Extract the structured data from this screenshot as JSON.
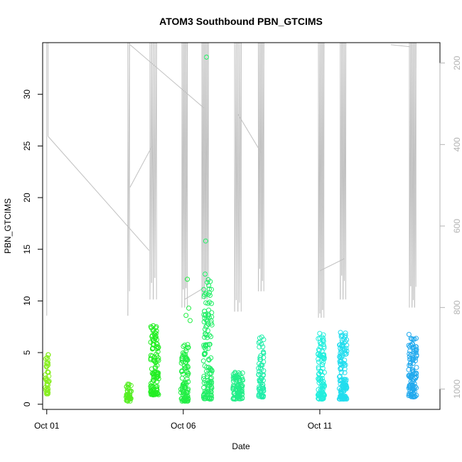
{
  "chart_data": {
    "type": "scatter",
    "title": "ATOM3 Southbound PBN_GTCIMS",
    "xlabel": "Date",
    "ylabel": "PBN_GTCIMS",
    "xlim": [
      -0.15,
      14.4
    ],
    "ylim": [
      -0.5,
      35
    ],
    "x_ticks": [
      0,
      5,
      10
    ],
    "x_tick_labels": [
      "Oct 01",
      "Oct 06",
      "Oct 11"
    ],
    "y_ticks": [
      0,
      5,
      10,
      15,
      20,
      25,
      30
    ],
    "y_tick_labels": [
      "0",
      "5",
      "10",
      "15",
      "20",
      "25",
      "30"
    ],
    "y2_ticks": [
      200,
      400,
      600,
      800,
      1000
    ],
    "y2_tick_labels": [
      "200",
      "400",
      "600",
      "800",
      "1000"
    ],
    "y2_lim": [
      1050,
      150
    ],
    "y2_label": "",
    "grid": false,
    "legend": "none",
    "series": [
      {
        "kind": "points",
        "clusters": [
          {
            "day": 0.02,
            "width": 0.07,
            "y_min": 1.0,
            "y_max": 4.8,
            "n": 45,
            "color": "#88ee22"
          },
          {
            "day": 3.0,
            "width": 0.1,
            "y_min": 0.3,
            "y_max": 2.0,
            "n": 40,
            "color": "#55ee22"
          },
          {
            "day": 3.95,
            "width": 0.15,
            "y_min": 0.9,
            "y_max": 7.6,
            "n": 110,
            "color": "#22ee22"
          },
          {
            "day": 5.05,
            "width": 0.14,
            "y_min": 0.3,
            "y_max": 5.8,
            "n": 95,
            "color": "#22ee44"
          },
          {
            "day": 5.9,
            "width": 0.16,
            "y_min": 0.5,
            "y_max": 12.7,
            "n": 130,
            "color": "#22ee66"
          },
          {
            "day": 7.0,
            "width": 0.18,
            "y_min": 0.5,
            "y_max": 3.2,
            "n": 90,
            "color": "#22ee88"
          },
          {
            "day": 7.85,
            "width": 0.1,
            "y_min": 0.7,
            "y_max": 6.8,
            "n": 70,
            "color": "#22eeaa"
          },
          {
            "day": 10.05,
            "width": 0.12,
            "y_min": 0.5,
            "y_max": 6.9,
            "n": 110,
            "color": "#22eedd"
          },
          {
            "day": 10.85,
            "width": 0.14,
            "y_min": 0.5,
            "y_max": 7.0,
            "n": 130,
            "color": "#22ddee"
          },
          {
            "day": 13.4,
            "width": 0.15,
            "y_min": 0.7,
            "y_max": 6.9,
            "n": 110,
            "color": "#22aaee"
          }
        ],
        "outliers": [
          {
            "x": 5.15,
            "y": 12.1,
            "color": "#22ee44"
          },
          {
            "x": 5.2,
            "y": 9.3,
            "color": "#22ee44"
          },
          {
            "x": 5.1,
            "y": 8.6,
            "color": "#22ee44"
          },
          {
            "x": 5.25,
            "y": 8.1,
            "color": "#22ee44"
          },
          {
            "x": 5.18,
            "y": 5.5,
            "color": "#22ee44"
          },
          {
            "x": 5.85,
            "y": 33.6,
            "color": "#22ee66"
          },
          {
            "x": 5.82,
            "y": 15.8,
            "color": "#22ee66"
          },
          {
            "x": 5.8,
            "y": 12.6,
            "color": "#22ee66"
          },
          {
            "x": 5.88,
            "y": 11.8,
            "color": "#22ee66"
          },
          {
            "x": 5.78,
            "y": 10.6,
            "color": "#22ee66"
          },
          {
            "x": 5.8,
            "y": 8.6,
            "color": "#22ee66"
          },
          {
            "x": 5.83,
            "y": 7.5,
            "color": "#22ee66"
          },
          {
            "x": 3.9,
            "y": 7.6,
            "color": "#22ee22"
          },
          {
            "x": 3.88,
            "y": 6.3,
            "color": "#22ee22"
          },
          {
            "x": 0.05,
            "y": 4.8,
            "color": "#88ee22"
          }
        ]
      },
      {
        "kind": "line",
        "axis": "right",
        "color": "#c0c0c0",
        "segments": [
          {
            "day": 0.0,
            "y_from": 150,
            "y_to": 820,
            "spikes": 1,
            "spread": 0.02
          },
          {
            "day": 0.05,
            "y_from": 150,
            "y_to": 380,
            "spikes": 1,
            "spread": 0.01
          },
          {
            "day": 3.0,
            "y_from": 150,
            "y_to": 820,
            "spikes": 2,
            "spread": 0.03
          },
          {
            "day": 3.9,
            "y_from": 150,
            "y_to": 780,
            "spikes": 5,
            "spread": 0.12
          },
          {
            "day": 5.05,
            "y_from": 150,
            "y_to": 800,
            "spikes": 5,
            "spread": 0.1
          },
          {
            "day": 5.8,
            "y_from": 150,
            "y_to": 780,
            "spikes": 6,
            "spread": 0.12
          },
          {
            "day": 7.0,
            "y_from": 150,
            "y_to": 810,
            "spikes": 5,
            "spread": 0.12
          },
          {
            "day": 7.85,
            "y_from": 150,
            "y_to": 760,
            "spikes": 5,
            "spread": 0.1
          },
          {
            "day": 10.05,
            "y_from": 150,
            "y_to": 825,
            "spikes": 5,
            "spread": 0.1
          },
          {
            "day": 10.85,
            "y_from": 150,
            "y_to": 780,
            "spikes": 5,
            "spread": 0.1
          },
          {
            "day": 13.4,
            "y_from": 150,
            "y_to": 800,
            "spikes": 6,
            "spread": 0.12
          }
        ],
        "connectors": [
          [
            [
              0.05,
              380
            ],
            [
              3.75,
              660
            ]
          ],
          [
            [
              3.05,
              505
            ],
            [
              3.85,
              405
            ]
          ],
          [
            [
              3.05,
              155
            ],
            [
              5.75,
              310
            ]
          ],
          [
            [
              5.05,
              780
            ],
            [
              5.75,
              752
            ]
          ],
          [
            [
              7.0,
              325
            ],
            [
              7.85,
              420
            ]
          ],
          [
            [
              10.0,
              710
            ],
            [
              10.9,
              680
            ]
          ],
          [
            [
              12.6,
              155
            ],
            [
              13.3,
              160
            ]
          ]
        ]
      }
    ]
  }
}
